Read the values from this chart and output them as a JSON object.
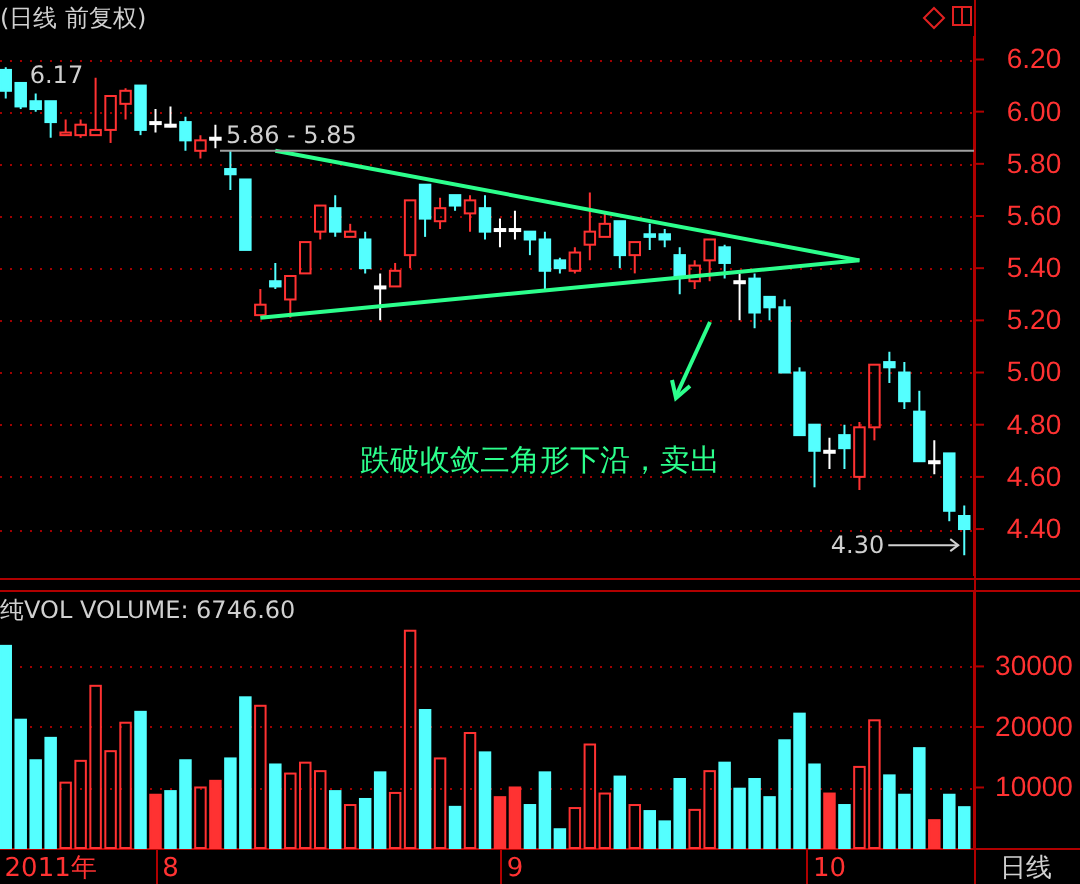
{
  "chart_data": [
    {
      "type": "candlestick",
      "title": "(日线 前复权)",
      "categories": [
        null,
        null,
        null,
        null,
        null,
        null,
        null,
        null,
        null,
        null,
        null,
        null,
        null,
        null,
        null,
        null,
        null,
        null,
        null,
        null,
        null,
        null,
        null,
        null,
        null,
        null,
        null,
        null,
        null,
        null,
        null,
        null,
        null,
        null,
        null,
        null,
        null,
        null,
        null,
        null,
        null,
        null,
        null,
        null,
        null,
        null,
        null,
        null,
        null,
        null,
        null,
        null,
        null,
        null,
        null,
        null,
        null,
        null,
        null,
        null,
        null,
        null,
        null,
        null,
        null
      ],
      "ohlc": [
        [
          6.16,
          6.17,
          6.05,
          6.08
        ],
        [
          6.11,
          6.11,
          6.01,
          6.02
        ],
        [
          6.04,
          6.07,
          6.0,
          6.01
        ],
        [
          6.04,
          6.04,
          5.9,
          5.96
        ],
        [
          5.91,
          5.97,
          5.91,
          5.92
        ],
        [
          5.91,
          5.97,
          5.9,
          5.95
        ],
        [
          5.91,
          6.13,
          5.91,
          5.93
        ],
        [
          5.93,
          6.06,
          5.88,
          6.06
        ],
        [
          6.03,
          6.09,
          5.97,
          6.08
        ],
        [
          6.1,
          6.1,
          5.91,
          5.93
        ],
        [
          5.96,
          6.01,
          5.92,
          5.96
        ],
        [
          5.95,
          6.02,
          5.94,
          5.95
        ],
        [
          5.96,
          5.98,
          5.85,
          5.89
        ],
        [
          5.85,
          5.91,
          5.82,
          5.89
        ],
        [
          5.9,
          5.95,
          5.86,
          5.9
        ],
        [
          5.78,
          5.85,
          5.7,
          5.76
        ],
        [
          5.74,
          5.74,
          5.47,
          5.47
        ],
        [
          5.22,
          5.32,
          5.22,
          5.26
        ],
        [
          5.35,
          5.42,
          5.32,
          5.33
        ],
        [
          5.28,
          5.37,
          5.21,
          5.37
        ],
        [
          5.38,
          5.5,
          5.38,
          5.5
        ],
        [
          5.54,
          5.64,
          5.51,
          5.64
        ],
        [
          5.63,
          5.68,
          5.52,
          5.54
        ],
        [
          5.52,
          5.57,
          5.52,
          5.54
        ],
        [
          5.51,
          5.54,
          5.38,
          5.4
        ],
        [
          5.33,
          5.38,
          5.2,
          5.33
        ],
        [
          5.33,
          5.42,
          5.33,
          5.39
        ],
        [
          5.45,
          5.66,
          5.4,
          5.66
        ],
        [
          5.72,
          5.72,
          5.52,
          5.59
        ],
        [
          5.58,
          5.67,
          5.55,
          5.63
        ],
        [
          5.68,
          5.68,
          5.62,
          5.64
        ],
        [
          5.61,
          5.68,
          5.54,
          5.66
        ],
        [
          5.63,
          5.68,
          5.51,
          5.54
        ],
        [
          5.55,
          5.59,
          5.48,
          5.55
        ],
        [
          5.55,
          5.62,
          5.51,
          5.55
        ],
        [
          5.54,
          5.54,
          5.45,
          5.51
        ],
        [
          5.51,
          5.54,
          5.32,
          5.39
        ],
        [
          5.43,
          5.44,
          5.38,
          5.4
        ],
        [
          5.39,
          5.48,
          5.38,
          5.46
        ],
        [
          5.49,
          5.69,
          5.43,
          5.54
        ],
        [
          5.52,
          5.61,
          5.52,
          5.57
        ],
        [
          5.58,
          5.58,
          5.4,
          5.45
        ],
        [
          5.45,
          5.5,
          5.38,
          5.5
        ],
        [
          5.53,
          5.57,
          5.47,
          5.52
        ],
        [
          5.53,
          5.55,
          5.48,
          5.51
        ],
        [
          5.45,
          5.48,
          5.3,
          5.37
        ],
        [
          5.35,
          5.43,
          5.32,
          5.41
        ],
        [
          5.43,
          5.51,
          5.35,
          5.51
        ],
        [
          5.48,
          5.49,
          5.36,
          5.42
        ],
        [
          5.35,
          5.38,
          5.2,
          5.35
        ],
        [
          5.36,
          5.38,
          5.17,
          5.23
        ],
        [
          5.29,
          5.29,
          5.2,
          5.25
        ],
        [
          5.25,
          5.28,
          5.0,
          5.0
        ],
        [
          5.0,
          5.02,
          4.76,
          4.76
        ],
        [
          4.8,
          4.8,
          4.56,
          4.7
        ],
        [
          4.7,
          4.75,
          4.63,
          4.7
        ],
        [
          4.76,
          4.8,
          4.63,
          4.71
        ],
        [
          4.6,
          4.81,
          4.55,
          4.79
        ],
        [
          4.79,
          5.03,
          4.74,
          5.03
        ],
        [
          5.04,
          5.08,
          4.96,
          5.02
        ],
        [
          5.0,
          5.04,
          4.86,
          4.89
        ],
        [
          4.85,
          4.93,
          4.66,
          4.66
        ],
        [
          4.66,
          4.74,
          4.61,
          4.66
        ],
        [
          4.69,
          4.69,
          4.43,
          4.47
        ],
        [
          4.45,
          4.49,
          4.3,
          4.4
        ]
      ],
      "colors": [
        "#54ffff",
        "#54ffff",
        "#54ffff",
        "#54ffff",
        "#ff3232",
        "#ff3232",
        "#ff3232",
        "#ff3232",
        "#ff3232",
        "#54ffff",
        "#ffffff",
        "#ffffff",
        "#54ffff",
        "#ff3232",
        "#ffffff",
        "#54ffff",
        "#54ffff",
        "#ff3232",
        "#54ffff",
        "#ff3232",
        "#ff3232",
        "#ff3232",
        "#54ffff",
        "#ff3232",
        "#54ffff",
        "#ffffff",
        "#ff3232",
        "#ff3232",
        "#54ffff",
        "#ff3232",
        "#54ffff",
        "#ff3232",
        "#54ffff",
        "#ffffff",
        "#ffffff",
        "#54ffff",
        "#54ffff",
        "#54ffff",
        "#ff3232",
        "#ff3232",
        "#ff3232",
        "#54ffff",
        "#ff3232",
        "#54ffff",
        "#54ffff",
        "#54ffff",
        "#ff3232",
        "#ff3232",
        "#54ffff",
        "#ffffff",
        "#54ffff",
        "#54ffff",
        "#54ffff",
        "#54ffff",
        "#54ffff",
        "#ffffff",
        "#54ffff",
        "#ff3232",
        "#ff3232",
        "#54ffff",
        "#54ffff",
        "#54ffff",
        "#ffffff",
        "#54ffff",
        "#54ffff"
      ],
      "series": [
        {
          "type": "line",
          "color": "#2cff8c",
          "values": [
            null,
            null,
            null,
            null,
            null,
            null,
            null,
            null,
            null,
            null,
            null,
            null,
            null,
            null,
            null,
            null,
            null,
            null,
            5.85,
            null,
            null,
            null,
            null,
            null,
            null,
            null,
            null,
            null,
            null,
            null,
            null,
            null,
            null,
            null,
            null,
            null,
            null,
            null,
            null,
            null,
            null,
            null,
            null,
            null,
            null,
            null,
            null,
            null,
            null,
            null,
            null,
            null,
            null,
            null,
            null,
            null,
            null,
            5.43,
            null,
            null,
            null,
            null,
            null,
            null,
            null
          ]
        },
        {
          "type": "line",
          "color": "#2cff8c",
          "values": [
            null,
            null,
            null,
            null,
            null,
            null,
            null,
            null,
            null,
            null,
            null,
            null,
            null,
            null,
            null,
            null,
            null,
            5.21,
            null,
            null,
            null,
            null,
            null,
            null,
            null,
            null,
            null,
            null,
            null,
            null,
            null,
            null,
            null,
            null,
            null,
            null,
            null,
            null,
            null,
            null,
            null,
            null,
            null,
            null,
            null,
            null,
            null,
            null,
            null,
            null,
            null,
            null,
            null,
            null,
            null,
            null,
            null,
            5.43,
            null,
            null,
            null,
            null,
            null,
            null,
            null
          ]
        }
      ],
      "ylim": [
        4.22,
        6.29
      ],
      "yticks": [
        {
          "value": 4.4,
          "label": "4.40"
        },
        {
          "value": 4.6,
          "label": "4.60"
        },
        {
          "value": 4.8,
          "label": "4.80"
        },
        {
          "value": 5,
          "label": "5.00"
        },
        {
          "value": 5.2,
          "label": "5.20"
        },
        {
          "value": 5.4,
          "label": "5.40"
        },
        {
          "value": 5.6,
          "label": "5.60"
        },
        {
          "value": 5.8,
          "label": "5.80"
        },
        {
          "value": 6,
          "label": "6.00"
        },
        {
          "value": 6.2,
          "label": "6.20"
        }
      ],
      "grid": "y",
      "tick_labels": "y",
      "ref_lines": [
        {
          "axis": "y",
          "value": 5.85,
          "color": "#a0a0a0"
        }
      ],
      "annotations": [
        "6.17",
        "4.30",
        "5.86 - 5.85",
        "跌破收敛三角形下沿，卖出"
      ]
    },
    {
      "type": "bar",
      "title": "纯VOL VOLUME: 6746.60",
      "categories": [
        null,
        null,
        null,
        "2011年",
        null,
        null,
        null,
        null,
        null,
        null,
        null,
        "8",
        null,
        null,
        null,
        null,
        null,
        null,
        null,
        null,
        null,
        null,
        null,
        null,
        null,
        null,
        null,
        null,
        null,
        null,
        null,
        null,
        null,
        null,
        "9",
        null,
        null,
        null,
        null,
        null,
        null,
        null,
        null,
        null,
        null,
        null,
        null,
        null,
        null,
        null,
        null,
        null,
        null,
        null,
        null,
        "10",
        null,
        null,
        null,
        null,
        null,
        null,
        null,
        null,
        null
      ],
      "values": [
        33400,
        21200,
        14500,
        18200,
        10800,
        14400,
        26800,
        16000,
        20700,
        22500,
        8800,
        9400,
        14500,
        10000,
        11100,
        14800,
        24900,
        23500,
        13800,
        12300,
        14100,
        12700,
        9400,
        7100,
        8100,
        12500,
        9100,
        35900,
        22800,
        14800,
        6800,
        19000,
        15800,
        8400,
        10000,
        7100,
        12500,
        3100,
        6600,
        17100,
        9000,
        11800,
        7100,
        6100,
        4400,
        11400,
        6300,
        12700,
        14100,
        9800,
        11400,
        8400,
        17800,
        22200,
        13800,
        9000,
        7100,
        13400,
        21100,
        12000,
        8800,
        16500,
        4600,
        8800,
        6746.6
      ],
      "colors": [
        "#54ffff",
        "#54ffff",
        "#54ffff",
        "#54ffff",
        "#ff3232",
        "#ff3232",
        "#ff3232",
        "#ff3232",
        "#ff3232",
        "#54ffff",
        "#ff3232",
        "#54ffff",
        "#54ffff",
        "#ff3232",
        "#ff3232",
        "#54ffff",
        "#54ffff",
        "#ff3232",
        "#54ffff",
        "#ff3232",
        "#ff3232",
        "#ff3232",
        "#54ffff",
        "#ff3232",
        "#54ffff",
        "#54ffff",
        "#ff3232",
        "#ff3232",
        "#54ffff",
        "#ff3232",
        "#54ffff",
        "#ff3232",
        "#54ffff",
        "#ff3232",
        "#ff3232",
        "#54ffff",
        "#54ffff",
        "#54ffff",
        "#ff3232",
        "#ff3232",
        "#ff3232",
        "#54ffff",
        "#ff3232",
        "#54ffff",
        "#54ffff",
        "#54ffff",
        "#ff3232",
        "#ff3232",
        "#54ffff",
        "#54ffff",
        "#54ffff",
        "#54ffff",
        "#54ffff",
        "#54ffff",
        "#54ffff",
        "#ff3232",
        "#54ffff",
        "#ff3232",
        "#ff3232",
        "#54ffff",
        "#54ffff",
        "#54ffff",
        "#ff3232",
        "#54ffff",
        "#54ffff"
      ],
      "ylim": [
        0,
        42300
      ],
      "yticks": [
        10000,
        20000,
        30000
      ],
      "grid": "y",
      "annotations": [
        "日线"
      ]
    }
  ]
}
